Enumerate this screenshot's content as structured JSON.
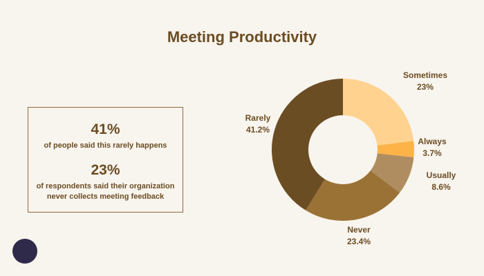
{
  "chart_data": {
    "type": "pie",
    "title": "Meeting Productivity",
    "categories": [
      "Sometimes",
      "Always",
      "Usually",
      "Never",
      "Rarely"
    ],
    "values": [
      23,
      3.7,
      8.6,
      23.4,
      41.2
    ],
    "value_labels": [
      "23%",
      "3.7%",
      "8.6%",
      "23.4%",
      "41.2%"
    ],
    "colors": [
      "#ffd28f",
      "#fdb347",
      "#b08d61",
      "#9a7236",
      "#6b4d23"
    ]
  },
  "stats": [
    {
      "figure": "41%",
      "caption": "of people said this rarely happens"
    },
    {
      "figure": "23%",
      "caption": "of respondents said their organization never collects meeting feedback"
    }
  ]
}
